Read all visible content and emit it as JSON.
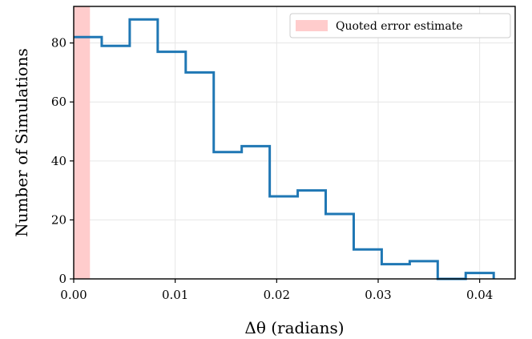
{
  "chart_data": {
    "type": "histogram",
    "bin_edges": [
      0.0,
      0.002759,
      0.005518,
      0.008277,
      0.011036,
      0.013795,
      0.016554,
      0.019313,
      0.022072,
      0.024831,
      0.02759,
      0.030349,
      0.033108,
      0.035867,
      0.038626,
      0.041385
    ],
    "counts": [
      82,
      79,
      88,
      77,
      70,
      43,
      45,
      28,
      30,
      22,
      10,
      5,
      6,
      0,
      2
    ],
    "series": [
      {
        "name": "histogram",
        "color": "#1f77b4"
      }
    ],
    "shaded_region": {
      "x_start": 0.0,
      "x_end": 0.0016,
      "color": "#ffcccc",
      "label": "Quoted error estimate"
    },
    "xlabel": "Δθ (radians)",
    "ylabel": "Number of Simulations",
    "xlim": [
      0.0,
      0.0435
    ],
    "ylim": [
      0,
      92.4
    ],
    "xticks": [
      0.0,
      0.01,
      0.02,
      0.03,
      0.04
    ],
    "xtick_labels": [
      "0.00",
      "0.01",
      "0.02",
      "0.03",
      "0.04"
    ],
    "yticks": [
      0,
      20,
      40,
      60,
      80
    ],
    "ytick_labels": [
      "0",
      "20",
      "40",
      "60",
      "80"
    ],
    "grid": true,
    "legend_position": "top-right"
  }
}
